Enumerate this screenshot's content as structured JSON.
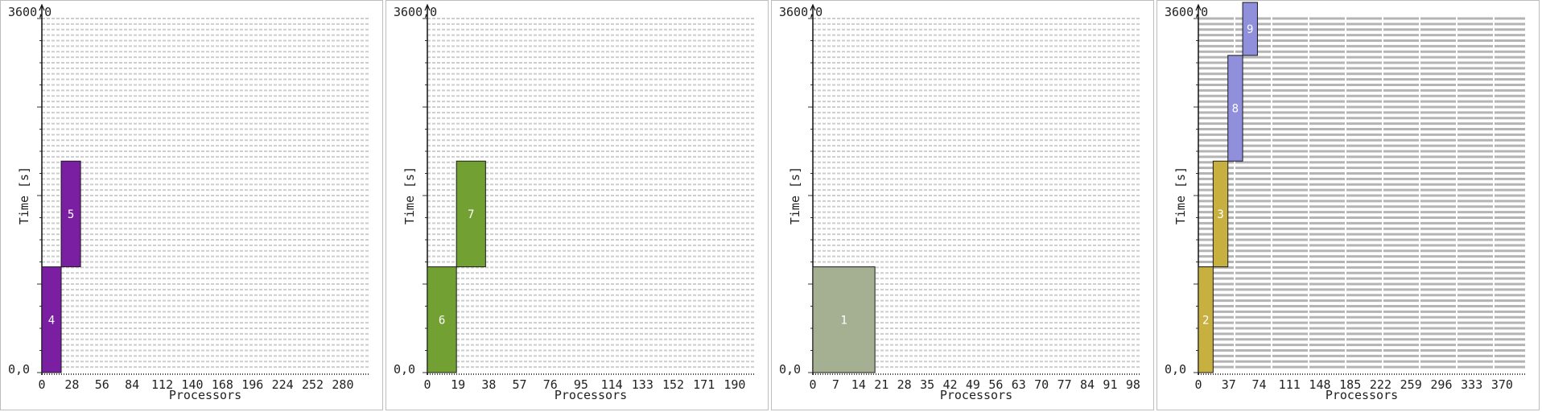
{
  "chart_data": [
    {
      "type": "bar",
      "corner_top": "3600,0",
      "corner_bottom": "0,0",
      "xlabel": "Processors",
      "ylabel": "Time [s]",
      "xticks": [
        0,
        28,
        56,
        84,
        112,
        140,
        168,
        196,
        224,
        252,
        280
      ],
      "xlim": [
        0,
        304
      ],
      "ylim": [
        0,
        3600
      ],
      "grid": true,
      "grid_rows": 64,
      "grid_dense": false,
      "color": "#7b1fa2",
      "jobs": [
        {
          "label": "4",
          "proc_start": 0,
          "proc_end": 18,
          "time_start": 0,
          "time_end": 1075
        },
        {
          "label": "5",
          "proc_start": 18,
          "proc_end": 36,
          "time_start": 1075,
          "time_end": 2150
        }
      ]
    },
    {
      "type": "bar",
      "corner_top": "3600,0",
      "corner_bottom": "0,0",
      "xlabel": "Processors",
      "ylabel": "Time [s]",
      "xticks": [
        0,
        19,
        38,
        57,
        76,
        95,
        114,
        133,
        152,
        171,
        190
      ],
      "xlim": [
        0,
        202
      ],
      "ylim": [
        0,
        3600
      ],
      "grid": true,
      "grid_rows": 64,
      "grid_dense": false,
      "color": "#72a032",
      "jobs": [
        {
          "label": "6",
          "proc_start": 0,
          "proc_end": 18,
          "time_start": 0,
          "time_end": 1075
        },
        {
          "label": "7",
          "proc_start": 18,
          "proc_end": 36,
          "time_start": 1075,
          "time_end": 2150
        }
      ]
    },
    {
      "type": "bar",
      "corner_top": "3600,0",
      "corner_bottom": "0,0",
      "xlabel": "Processors",
      "ylabel": "Time [s]",
      "xticks": [
        0,
        7,
        14,
        21,
        28,
        35,
        42,
        49,
        56,
        63,
        70,
        77,
        84,
        91,
        98
      ],
      "xlim": [
        0,
        100
      ],
      "ylim": [
        0,
        3600
      ],
      "grid": true,
      "grid_rows": 64,
      "grid_dense": false,
      "color": "#a5af92",
      "jobs": [
        {
          "label": "1",
          "proc_start": 0,
          "proc_end": 19,
          "time_start": 0,
          "time_end": 1075
        }
      ]
    },
    {
      "type": "bar",
      "corner_top": "3600,0",
      "corner_bottom": "0,0",
      "xlabel": "Processors",
      "ylabel": "Time [s]",
      "xticks": [
        0,
        37,
        74,
        111,
        148,
        185,
        222,
        259,
        296,
        333,
        370
      ],
      "xlim": [
        0,
        398
      ],
      "ylim": [
        0,
        3600
      ],
      "grid": true,
      "grid_rows": 64,
      "grid_dense": true,
      "color": "#c8b040",
      "jobs": [
        {
          "label": "2",
          "proc_start": 0,
          "proc_end": 18,
          "time_start": 0,
          "time_end": 1075,
          "color": "#c8b040"
        },
        {
          "label": "3",
          "proc_start": 18,
          "proc_end": 36,
          "time_start": 1075,
          "time_end": 2150,
          "color": "#c8b040"
        },
        {
          "label": "8",
          "proc_start": 36,
          "proc_end": 54,
          "time_start": 2150,
          "time_end": 3225,
          "color": "#8f8fdc"
        },
        {
          "label": "9",
          "proc_start": 54,
          "proc_end": 72,
          "time_start": 3225,
          "time_end": 4200,
          "color": "#8f8fdc"
        }
      ]
    }
  ]
}
